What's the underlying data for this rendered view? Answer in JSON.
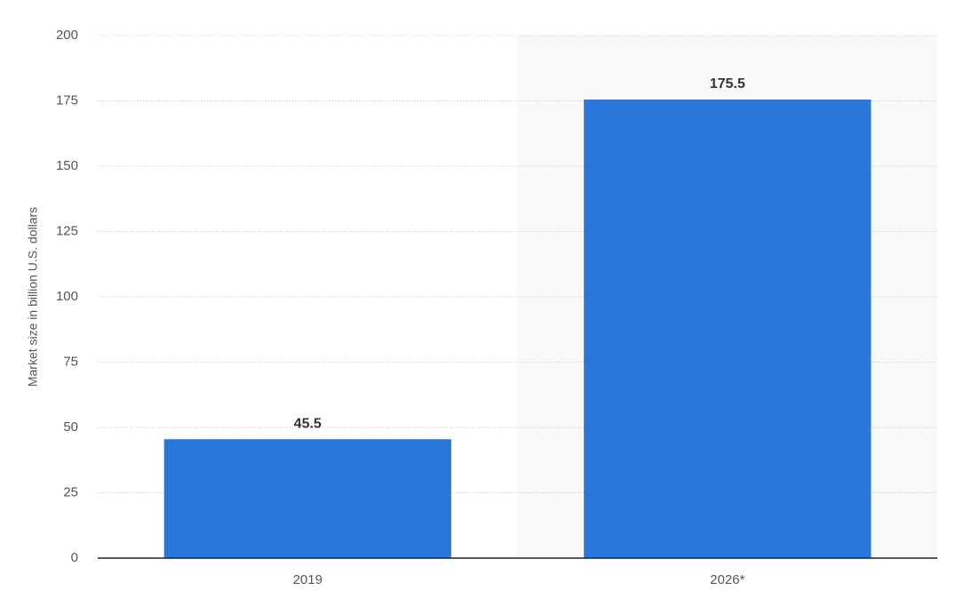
{
  "chart_data": {
    "type": "bar",
    "y_axis_label": "Market size in billion U.S. dollars",
    "categories": [
      "2019",
      "2026*"
    ],
    "values": [
      45.5,
      175.5
    ],
    "color": "#2a77dc",
    "ylim": [
      0,
      200
    ],
    "yticks": [
      0,
      25,
      50,
      75,
      100,
      125,
      150,
      175,
      200
    ],
    "grid": true
  }
}
